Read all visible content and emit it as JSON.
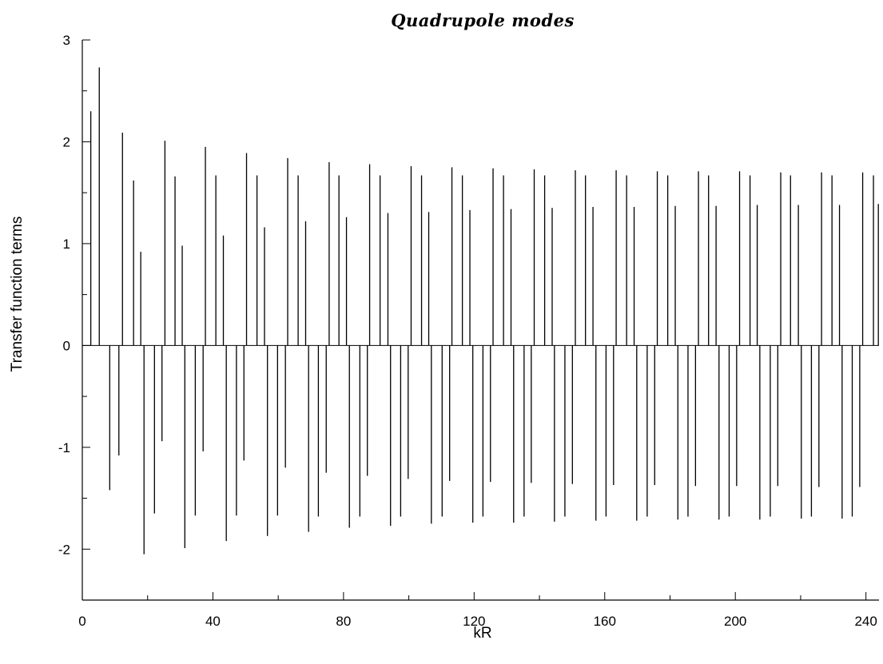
{
  "chart_data": {
    "type": "bar",
    "subtype": "stem",
    "title": "Quadrupole  modes",
    "xlabel": "kR",
    "ylabel": "Transfer  function  terms",
    "xlim": [
      0,
      244
    ],
    "ylim": [
      -2.5,
      3
    ],
    "xticks": [
      0,
      40,
      80,
      120,
      160,
      200,
      240
    ],
    "yticks": [
      -2,
      -1,
      0,
      1,
      2,
      3
    ],
    "x_minor_step": 20,
    "y_minor_step": 0.5,
    "grid": false,
    "series": [
      {
        "x": [
          2.6,
          5.2,
          8.4,
          11.2,
          12.3,
          15.7,
          17.9,
          18.9,
          22.1,
          24.4,
          25.3,
          28.4,
          30.6,
          31.4,
          34.6,
          37.0,
          37.7,
          40.9,
          43.2,
          44.1,
          47.2,
          49.5,
          50.3,
          53.5,
          55.8,
          56.7,
          59.8,
          62.2,
          62.9,
          66.1,
          68.4,
          69.3,
          72.3,
          74.7,
          75.6,
          78.6,
          80.9,
          81.8,
          85.0,
          87.3,
          88.0,
          91.2,
          93.6,
          94.4,
          97.5,
          99.8,
          100.7,
          103.9,
          106.1,
          106.9,
          110.2,
          112.5,
          113.2,
          116.4,
          118.7,
          119.6,
          122.7,
          125.0,
          125.8,
          129.0,
          131.3,
          132.1,
          135.3,
          137.5,
          138.4,
          141.6,
          143.9,
          144.6,
          147.8,
          150.1,
          151.0,
          154.1,
          156.4,
          157.3,
          160.4,
          162.7,
          163.5,
          166.7,
          169.0,
          169.8,
          173.0,
          175.3,
          176.1,
          179.3,
          181.6,
          182.4,
          185.5,
          187.8,
          188.7,
          191.8,
          194.1,
          195.0,
          198.1,
          200.4,
          201.3,
          204.5,
          206.7,
          207.5,
          210.7,
          213.0,
          213.9,
          216.9,
          219.3,
          220.2,
          223.3,
          225.6,
          226.4,
          229.6,
          231.9,
          232.7,
          235.8,
          238.1,
          239.0,
          242.3,
          243.8
        ],
        "values": [
          2.3,
          2.73,
          -1.42,
          -1.08,
          2.09,
          1.62,
          0.92,
          -2.05,
          -1.65,
          -0.94,
          2.01,
          1.66,
          0.98,
          -1.99,
          -1.67,
          -1.04,
          1.95,
          1.67,
          1.08,
          -1.92,
          -1.67,
          -1.13,
          1.89,
          1.67,
          1.16,
          -1.87,
          -1.67,
          -1.2,
          1.84,
          1.67,
          1.22,
          -1.83,
          -1.68,
          -1.25,
          1.8,
          1.67,
          1.26,
          -1.79,
          -1.68,
          -1.28,
          1.78,
          1.67,
          1.3,
          -1.77,
          -1.68,
          -1.31,
          1.76,
          1.67,
          1.31,
          -1.75,
          -1.68,
          -1.33,
          1.75,
          1.67,
          1.33,
          -1.74,
          -1.68,
          -1.34,
          1.74,
          1.67,
          1.34,
          -1.74,
          -1.68,
          -1.35,
          1.73,
          1.67,
          1.35,
          -1.73,
          -1.68,
          -1.36,
          1.72,
          1.67,
          1.36,
          -1.72,
          -1.68,
          -1.37,
          1.72,
          1.67,
          1.36,
          -1.72,
          -1.68,
          -1.37,
          1.71,
          1.67,
          1.37,
          -1.71,
          -1.68,
          -1.38,
          1.71,
          1.67,
          1.37,
          -1.71,
          -1.68,
          -1.38,
          1.71,
          1.67,
          1.38,
          -1.71,
          -1.68,
          -1.38,
          1.7,
          1.67,
          1.38,
          -1.7,
          -1.68,
          -1.39,
          1.7,
          1.67,
          1.38,
          -1.7,
          -1.68,
          -1.39,
          1.7,
          1.67,
          1.39
        ]
      }
    ]
  }
}
